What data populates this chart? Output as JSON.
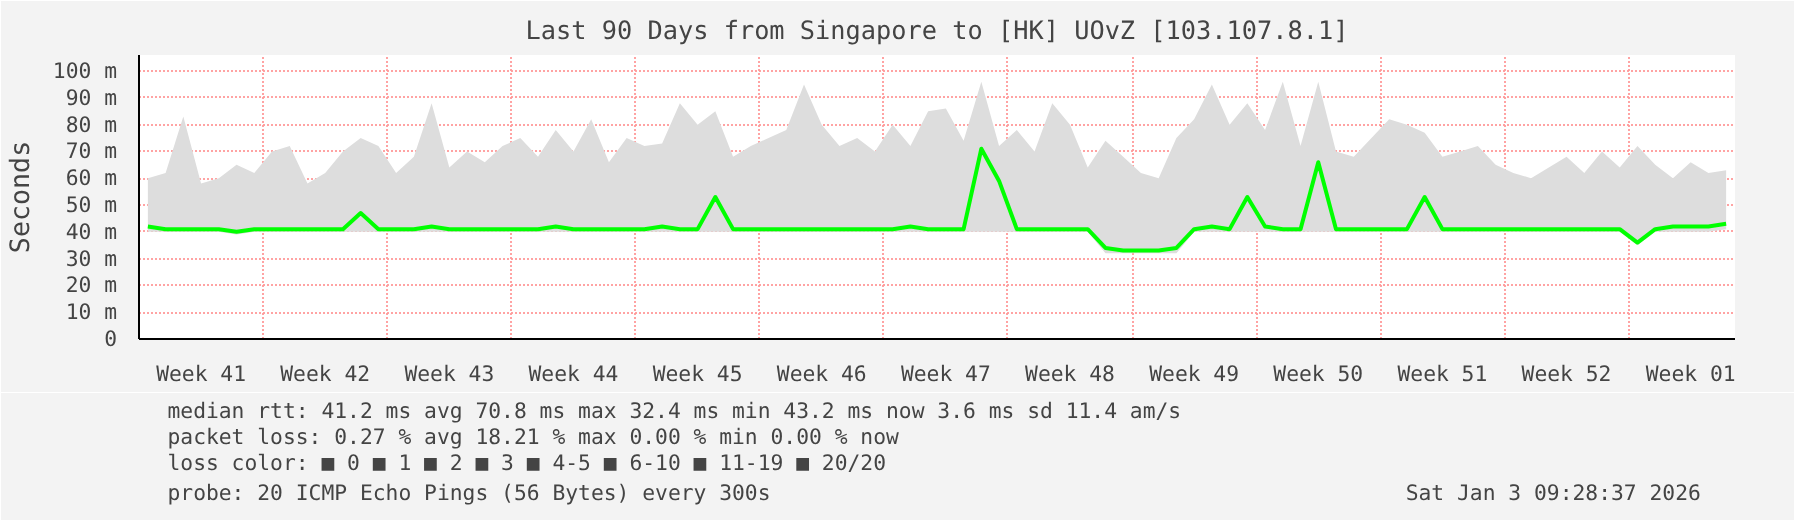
{
  "chart_data": {
    "type": "line",
    "title": "Last 90 Days from Singapore to [HK] UOvZ [103.107.8.1]",
    "ylabel": "Seconds",
    "categories": [
      null,
      null,
      null,
      "Week 41",
      null,
      null,
      null,
      null,
      null,
      null,
      "Week 42",
      null,
      null,
      null,
      null,
      null,
      null,
      "Week 43",
      null,
      null,
      null,
      null,
      null,
      null,
      "Week 44",
      null,
      null,
      null,
      null,
      null,
      null,
      "Week 45",
      null,
      null,
      null,
      null,
      null,
      null,
      "Week 46",
      null,
      null,
      null,
      null,
      null,
      null,
      "Week 47",
      null,
      null,
      null,
      null,
      null,
      null,
      "Week 48",
      null,
      null,
      null,
      null,
      null,
      null,
      "Week 49",
      null,
      null,
      null,
      null,
      null,
      null,
      "Week 50",
      null,
      null,
      null,
      null,
      null,
      null,
      "Week 51",
      null,
      null,
      null,
      null,
      null,
      null,
      "Week 52",
      null,
      null,
      null,
      null,
      null,
      null,
      "Week 01",
      null,
      null
    ],
    "series": [
      {
        "color": "#00ff00",
        "values": [
          42,
          41,
          41,
          41,
          41,
          40,
          41,
          41,
          41,
          41,
          41,
          41,
          47,
          41,
          41,
          41,
          42,
          41,
          41,
          41,
          41,
          41,
          41,
          42,
          41,
          41,
          41,
          41,
          41,
          42,
          41,
          41,
          53,
          41,
          41,
          41,
          41,
          41,
          41,
          41,
          41,
          41,
          41,
          42,
          41,
          41,
          41,
          71,
          59,
          41,
          41,
          41,
          41,
          41,
          34,
          33,
          33,
          33,
          34,
          41,
          42,
          41,
          53,
          42,
          41,
          41,
          66,
          41,
          41,
          41,
          41,
          41,
          53,
          41,
          41,
          41,
          41,
          41,
          41,
          41,
          41,
          41,
          41,
          41,
          36,
          41,
          42,
          42,
          42,
          43
        ],
        "lower": [
          40,
          40,
          40,
          40,
          40,
          39,
          40,
          40,
          40,
          40,
          40,
          40,
          40,
          40,
          40,
          40,
          40,
          40,
          40,
          40,
          40,
          40,
          40,
          40,
          40,
          40,
          40,
          40,
          40,
          40,
          40,
          40,
          40,
          40,
          40,
          40,
          40,
          40,
          40,
          40,
          40,
          40,
          40,
          40,
          40,
          40,
          40,
          40,
          40,
          40,
          40,
          40,
          40,
          40,
          32,
          32,
          32,
          32,
          32,
          40,
          40,
          40,
          40,
          40,
          40,
          40,
          40,
          40,
          40,
          40,
          40,
          40,
          40,
          40,
          40,
          40,
          40,
          40,
          40,
          40,
          40,
          40,
          40,
          40,
          35,
          40,
          40,
          40,
          40,
          41
        ],
        "upper": [
          60,
          62,
          83,
          58,
          60,
          65,
          62,
          70,
          72,
          58,
          62,
          70,
          75,
          72,
          62,
          68,
          88,
          64,
          70,
          66,
          72,
          75,
          68,
          78,
          70,
          82,
          66,
          75,
          72,
          73,
          88,
          80,
          85,
          68,
          72,
          75,
          78,
          95,
          80,
          72,
          75,
          70,
          80,
          72,
          85,
          86,
          74,
          96,
          72,
          78,
          70,
          88,
          80,
          64,
          74,
          68,
          62,
          60,
          75,
          82,
          95,
          80,
          88,
          78,
          96,
          72,
          96,
          70,
          68,
          75,
          82,
          80,
          77,
          68,
          70,
          72,
          65,
          62,
          60,
          64,
          68,
          62,
          70,
          64,
          72,
          65,
          60,
          66,
          62,
          63
        ]
      }
    ],
    "ylim": [
      0,
      106
    ],
    "yticks": [
      0,
      {
        "value": 10,
        "label": "10 m"
      },
      {
        "value": 20,
        "label": "20 m"
      },
      {
        "value": 30,
        "label": "30 m"
      },
      {
        "value": 40,
        "label": "40 m"
      },
      {
        "value": 50,
        "label": "50 m"
      },
      {
        "value": 60,
        "label": "60 m"
      },
      {
        "value": 70,
        "label": "70 m"
      },
      {
        "value": 80,
        "label": "80 m"
      },
      {
        "value": 90,
        "label": "90 m"
      },
      {
        "value": 100,
        "label": "100 m"
      }
    ],
    "grid": true,
    "annotations": [
      "median rtt:  41.2 ms avg  70.8 ms max  32.4 ms min  43.2 ms now  3.6 ms sd  11.4   am/s",
      "packet loss: 0.27 % avg  18.21 % max  0.00 % min  0.00 % now",
      "loss color:  ■ 0  ■ 1  ■ 2  ■ 3  ■ 4-5  ■ 6-10  ■ 11-19  ■ 20/20",
      "probe:       20 ICMP Echo Pings (56 Bytes) every 300s",
      "Sat Jan  3 09:28:37 2026"
    ]
  }
}
